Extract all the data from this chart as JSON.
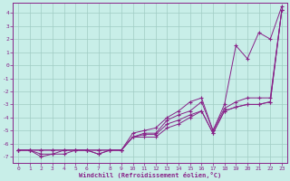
{
  "xlabel": "Windchill (Refroidissement éolien,°C)",
  "xlim": [
    -0.5,
    23.5
  ],
  "ylim": [
    -7.5,
    4.8
  ],
  "yticks": [
    4,
    3,
    2,
    1,
    0,
    -1,
    -2,
    -3,
    -4,
    -5,
    -6,
    -7
  ],
  "xticks": [
    0,
    1,
    2,
    3,
    4,
    5,
    6,
    7,
    8,
    9,
    10,
    11,
    12,
    13,
    14,
    15,
    16,
    17,
    18,
    19,
    20,
    21,
    22,
    23
  ],
  "background_color": "#c8eee8",
  "grid_color": "#a0ccc4",
  "line_color": "#882288",
  "lines": [
    {
      "x": [
        0,
        1,
        2,
        3,
        4,
        5,
        6,
        7,
        8,
        9,
        10,
        11,
        12,
        13,
        14,
        15,
        16,
        17,
        18,
        19,
        20,
        21,
        22,
        23
      ],
      "y": [
        -6.5,
        -6.5,
        -7.0,
        -6.8,
        -6.8,
        -6.5,
        -6.5,
        -6.8,
        -6.5,
        -6.5,
        -5.2,
        -5.0,
        -4.8,
        -4.0,
        -3.5,
        -2.8,
        -2.5,
        -5.0,
        -3.0,
        1.5,
        0.5,
        2.5,
        2.0,
        4.5
      ]
    },
    {
      "x": [
        0,
        1,
        2,
        3,
        4,
        5,
        6,
        7,
        8,
        9,
        10,
        11,
        12,
        13,
        14,
        15,
        16,
        17,
        18,
        19,
        20,
        21,
        22,
        23
      ],
      "y": [
        -6.5,
        -6.5,
        -6.8,
        -6.8,
        -6.5,
        -6.5,
        -6.5,
        -6.5,
        -6.5,
        -6.5,
        -5.5,
        -5.2,
        -5.2,
        -4.2,
        -3.8,
        -3.5,
        -2.8,
        -5.0,
        -3.3,
        -2.8,
        -2.5,
        -2.5,
        -2.5,
        4.2
      ]
    },
    {
      "x": [
        0,
        1,
        2,
        3,
        4,
        5,
        6,
        7,
        8,
        9,
        10,
        11,
        12,
        13,
        14,
        15,
        16,
        17,
        18,
        19,
        20,
        21,
        22,
        23
      ],
      "y": [
        -6.5,
        -6.5,
        -6.5,
        -6.5,
        -6.5,
        -6.5,
        -6.5,
        -6.5,
        -6.5,
        -6.5,
        -5.5,
        -5.3,
        -5.3,
        -4.5,
        -4.2,
        -3.8,
        -3.5,
        -5.2,
        -3.5,
        -3.2,
        -3.0,
        -3.0,
        -2.8,
        4.2
      ]
    },
    {
      "x": [
        0,
        1,
        2,
        3,
        4,
        5,
        6,
        7,
        8,
        9,
        10,
        11,
        12,
        13,
        14,
        15,
        16,
        17,
        18,
        19,
        20,
        21,
        22,
        23
      ],
      "y": [
        -6.5,
        -6.5,
        -6.5,
        -6.5,
        -6.5,
        -6.5,
        -6.5,
        -6.8,
        -6.5,
        -6.5,
        -5.5,
        -5.5,
        -5.5,
        -4.8,
        -4.5,
        -4.0,
        -3.5,
        -5.2,
        -3.5,
        -3.2,
        -3.0,
        -3.0,
        -2.8,
        4.2
      ]
    }
  ]
}
